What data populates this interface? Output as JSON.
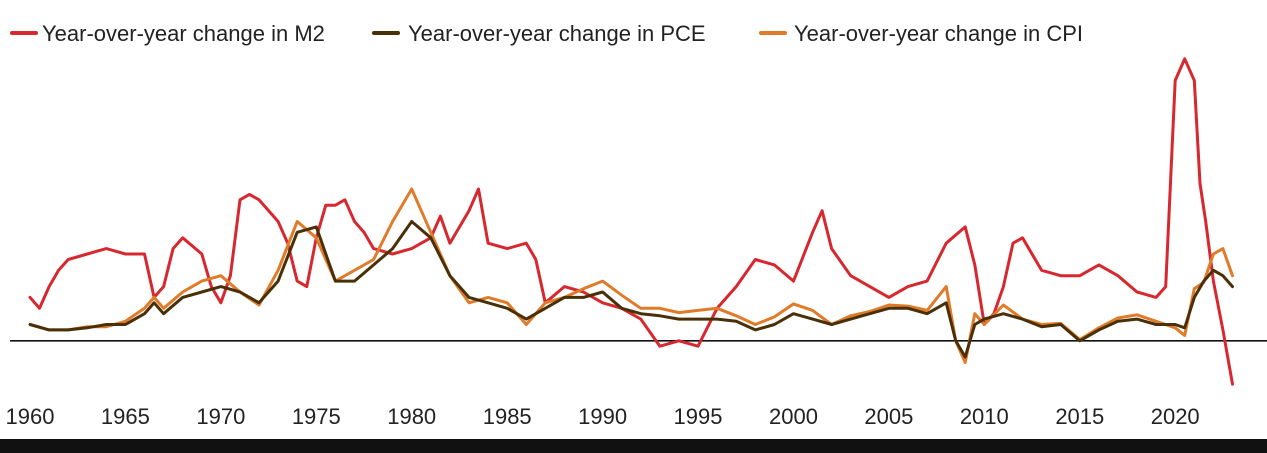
{
  "chart_data": {
    "type": "line",
    "title": "",
    "xlabel": "",
    "ylabel": "",
    "xlim": [
      1960,
      2023.5
    ],
    "ylim": [
      -5,
      27
    ],
    "grid": false,
    "legend_position": "top-left",
    "x_ticks": [
      1960,
      1965,
      1970,
      1975,
      1980,
      1985,
      1990,
      1995,
      2000,
      2005,
      2010,
      2015,
      2020
    ],
    "series": [
      {
        "name": "Year-over-year change in M2",
        "color": "#d7282f",
        "x": [
          1960,
          1960.5,
          1961,
          1961.5,
          1962,
          1963,
          1964,
          1965,
          1966,
          1966.5,
          1967,
          1967.5,
          1968,
          1969,
          1969.5,
          1970,
          1970.5,
          1971,
          1971.5,
          1972,
          1973,
          1973.5,
          1974,
          1974.5,
          1975,
          1975.5,
          1976,
          1976.5,
          1977,
          1977.5,
          1978,
          1979,
          1980,
          1981,
          1981.5,
          1982,
          1983,
          1983.5,
          1984,
          1985,
          1986,
          1986.5,
          1987,
          1988,
          1989,
          1990,
          1991,
          1992,
          1993,
          1994,
          1995,
          1996,
          1997,
          1998,
          1999,
          2000,
          2001,
          2001.5,
          2002,
          2003,
          2004,
          2005,
          2006,
          2007,
          2008,
          2009,
          2009.5,
          2010,
          2010.5,
          2011,
          2011.5,
          2012,
          2013,
          2014,
          2015,
          2016,
          2017,
          2018,
          2019,
          2019.5,
          2020,
          2020.5,
          2021,
          2021.3,
          2021.6,
          2022,
          2022.5,
          2023
        ],
        "values": [
          4,
          3,
          5,
          6.5,
          7.5,
          8,
          8.5,
          8,
          8,
          4,
          5,
          8.5,
          9.5,
          8,
          5,
          3.5,
          6,
          13,
          13.5,
          13,
          11,
          9,
          5.5,
          5,
          9.5,
          12.5,
          12.5,
          13,
          11,
          10,
          8.5,
          8,
          8.5,
          9.5,
          11.5,
          9,
          12,
          14,
          9,
          8.5,
          9,
          7.5,
          3.5,
          5,
          4.5,
          3.5,
          3,
          2,
          -0.5,
          0,
          -0.5,
          3,
          5,
          7.5,
          7,
          5.5,
          10,
          12,
          8.5,
          6,
          5,
          4,
          5,
          5.5,
          9,
          10.5,
          7,
          1.5,
          2.5,
          5,
          9,
          9.5,
          6.5,
          6,
          6,
          7,
          6,
          4.5,
          4,
          5,
          24,
          26,
          24,
          14.5,
          11,
          5.5,
          1,
          -4
        ],
        "label": "Year-over-year change in M2"
      },
      {
        "name": "Year-over-year change in PCE",
        "color": "#4a3008",
        "x": [
          1960,
          1961,
          1962,
          1963,
          1964,
          1965,
          1966,
          1966.5,
          1967,
          1968,
          1969,
          1970,
          1971,
          1972,
          1973,
          1974,
          1975,
          1975.5,
          1976,
          1977,
          1978,
          1979,
          1980,
          1981,
          1982,
          1983,
          1984,
          1985,
          1986,
          1987,
          1988,
          1989,
          1990,
          1991,
          1992,
          1993,
          1994,
          1995,
          1996,
          1997,
          1998,
          1999,
          2000,
          2001,
          2002,
          2003,
          2004,
          2005,
          2006,
          2007,
          2008,
          2008.5,
          2009,
          2009.5,
          2010,
          2011,
          2012,
          2013,
          2014,
          2015,
          2016,
          2017,
          2018,
          2019,
          2020,
          2020.5,
          2021,
          2021.5,
          2022,
          2022.5,
          2023
        ],
        "values": [
          1.5,
          1,
          1,
          1.2,
          1.5,
          1.5,
          2.5,
          3.5,
          2.5,
          4,
          4.5,
          5,
          4.5,
          3.5,
          5.5,
          10,
          10.5,
          8,
          5.5,
          5.5,
          7,
          8.5,
          11,
          9.5,
          6,
          4,
          3.5,
          3,
          2,
          3,
          4,
          4,
          4.5,
          3,
          2.5,
          2.3,
          2,
          2,
          2,
          1.8,
          1,
          1.5,
          2.5,
          2,
          1.5,
          2,
          2.5,
          3,
          3,
          2.5,
          3.5,
          0,
          -1.5,
          1.5,
          2,
          2.5,
          2,
          1.3,
          1.5,
          0,
          1,
          1.8,
          2,
          1.5,
          1.5,
          1.2,
          4,
          5.5,
          6.5,
          6,
          5
        ],
        "label": "Year-over-year change in PCE"
      },
      {
        "name": "Year-over-year change in CPI",
        "color": "#e07b2a",
        "x": [
          1960,
          1961,
          1962,
          1963,
          1964,
          1965,
          1966,
          1966.5,
          1967,
          1968,
          1969,
          1970,
          1971,
          1972,
          1973,
          1974,
          1975,
          1975.5,
          1976,
          1977,
          1978,
          1979,
          1980,
          1981,
          1982,
          1983,
          1984,
          1985,
          1986,
          1987,
          1988,
          1989,
          1990,
          1991,
          1992,
          1993,
          1994,
          1995,
          1996,
          1997,
          1998,
          1999,
          2000,
          2001,
          2002,
          2003,
          2004,
          2005,
          2006,
          2007,
          2008,
          2008.5,
          2009,
          2009.5,
          2010,
          2011,
          2012,
          2013,
          2014,
          2015,
          2016,
          2017,
          2018,
          2019,
          2020,
          2020.5,
          2021,
          2021.5,
          2022,
          2022.5,
          2023
        ],
        "values": [
          1.5,
          1,
          1,
          1.3,
          1.3,
          1.8,
          3,
          4,
          3,
          4.5,
          5.5,
          6,
          4.5,
          3.3,
          6.5,
          11,
          9.5,
          7.5,
          5.5,
          6.5,
          7.5,
          11,
          14,
          10,
          6,
          3.5,
          4,
          3.5,
          1.5,
          3.5,
          4,
          4.8,
          5.5,
          4.2,
          3,
          3,
          2.6,
          2.8,
          3,
          2.3,
          1.5,
          2.2,
          3.4,
          2.8,
          1.5,
          2.3,
          2.7,
          3.3,
          3.2,
          2.8,
          5,
          0,
          -2,
          2.5,
          1.5,
          3.3,
          2,
          1.5,
          1.6,
          0.1,
          1.2,
          2.1,
          2.4,
          1.8,
          1.2,
          0.5,
          4.8,
          5.4,
          8,
          8.5,
          6
        ]
      }
    ]
  }
}
